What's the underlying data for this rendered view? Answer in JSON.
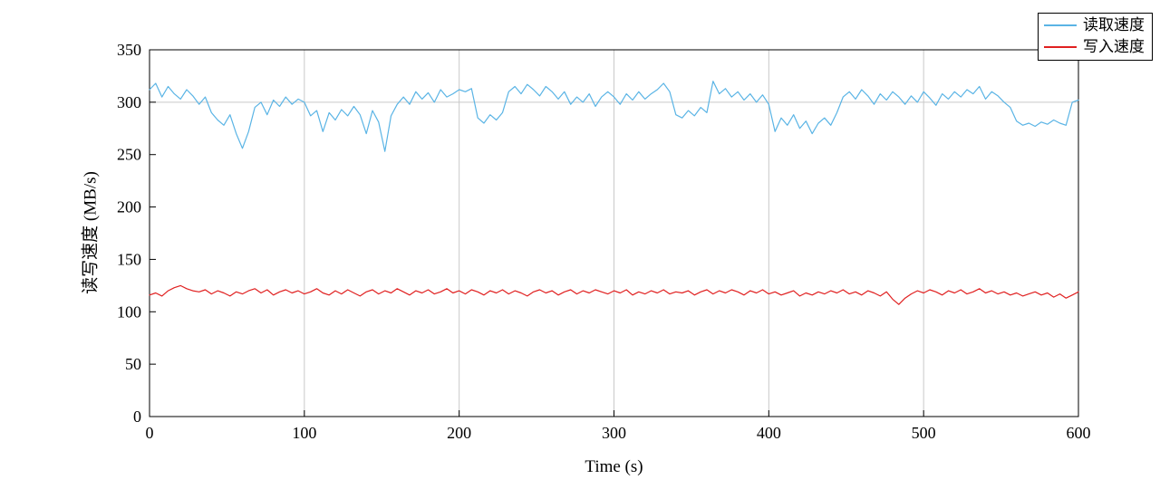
{
  "chart_data": {
    "type": "line",
    "title": "",
    "xlabel": "Time (s)",
    "ylabel": "读写速度 (MB/s)",
    "xlim": [
      0,
      600
    ],
    "ylim": [
      0,
      350
    ],
    "xticks": [
      0,
      100,
      200,
      300,
      400,
      500,
      600
    ],
    "yticks": [
      0,
      50,
      100,
      150,
      200,
      250,
      300,
      350
    ],
    "grid_x": [
      100,
      200,
      300,
      400,
      500
    ],
    "grid_y": [
      300
    ],
    "grid_color": "#c9c9c9",
    "frame_color": "#000000",
    "legend_position": "top-right",
    "x": [
      0,
      4,
      8,
      12,
      16,
      20,
      24,
      28,
      32,
      36,
      40,
      44,
      48,
      52,
      56,
      60,
      64,
      68,
      72,
      76,
      80,
      84,
      88,
      92,
      96,
      100,
      104,
      108,
      112,
      116,
      120,
      124,
      128,
      132,
      136,
      140,
      144,
      148,
      152,
      156,
      160,
      164,
      168,
      172,
      176,
      180,
      184,
      188,
      192,
      196,
      200,
      204,
      208,
      212,
      216,
      220,
      224,
      228,
      232,
      236,
      240,
      244,
      248,
      252,
      256,
      260,
      264,
      268,
      272,
      276,
      280,
      284,
      288,
      292,
      296,
      300,
      304,
      308,
      312,
      316,
      320,
      324,
      328,
      332,
      336,
      340,
      344,
      348,
      352,
      356,
      360,
      364,
      368,
      372,
      376,
      380,
      384,
      388,
      392,
      396,
      400,
      404,
      408,
      412,
      416,
      420,
      424,
      428,
      432,
      436,
      440,
      444,
      448,
      452,
      456,
      460,
      464,
      468,
      472,
      476,
      480,
      484,
      488,
      492,
      496,
      500,
      504,
      508,
      512,
      516,
      520,
      524,
      528,
      532,
      536,
      540,
      544,
      548,
      552,
      556,
      560,
      564,
      568,
      572,
      576,
      580,
      584,
      588,
      592,
      596,
      600
    ],
    "series": [
      {
        "name": "读取速度",
        "color": "#5ab4e5",
        "values": [
          312,
          318,
          305,
          315,
          308,
          303,
          312,
          306,
          298,
          305,
          290,
          283,
          278,
          288,
          270,
          256,
          272,
          295,
          300,
          288,
          302,
          296,
          305,
          298,
          303,
          300,
          287,
          292,
          272,
          290,
          283,
          293,
          287,
          296,
          288,
          270,
          292,
          281,
          253,
          287,
          298,
          305,
          298,
          310,
          303,
          309,
          300,
          312,
          305,
          308,
          312,
          310,
          313,
          285,
          280,
          288,
          283,
          290,
          310,
          315,
          308,
          317,
          312,
          306,
          315,
          310,
          303,
          310,
          298,
          305,
          300,
          308,
          296,
          305,
          310,
          305,
          298,
          308,
          302,
          310,
          303,
          308,
          312,
          318,
          310,
          288,
          285,
          292,
          287,
          295,
          290,
          320,
          308,
          313,
          305,
          310,
          302,
          308,
          300,
          307,
          298,
          272,
          285,
          278,
          288,
          275,
          282,
          270,
          280,
          285,
          278,
          290,
          305,
          310,
          303,
          312,
          306,
          298,
          308,
          302,
          310,
          305,
          298,
          306,
          300,
          310,
          304,
          297,
          308,
          303,
          310,
          305,
          312,
          308,
          315,
          303,
          310,
          306,
          300,
          295,
          282,
          278,
          280,
          277,
          281,
          279,
          283,
          280,
          278,
          300,
          302
        ]
      },
      {
        "name": "写入速度",
        "color": "#e02020",
        "values": [
          116,
          118,
          115,
          120,
          123,
          125,
          122,
          120,
          119,
          121,
          117,
          120,
          118,
          115,
          119,
          117,
          120,
          122,
          118,
          121,
          116,
          119,
          121,
          118,
          120,
          117,
          119,
          122,
          118,
          116,
          120,
          117,
          121,
          118,
          115,
          119,
          121,
          117,
          120,
          118,
          122,
          119,
          116,
          120,
          118,
          121,
          117,
          119,
          122,
          118,
          120,
          117,
          121,
          119,
          116,
          120,
          118,
          121,
          117,
          120,
          118,
          115,
          119,
          121,
          118,
          120,
          116,
          119,
          121,
          117,
          120,
          118,
          121,
          119,
          117,
          120,
          118,
          121,
          116,
          119,
          117,
          120,
          118,
          121,
          117,
          119,
          118,
          120,
          116,
          119,
          121,
          117,
          120,
          118,
          121,
          119,
          116,
          120,
          118,
          121,
          117,
          119,
          116,
          118,
          120,
          115,
          118,
          116,
          119,
          117,
          120,
          118,
          121,
          117,
          119,
          116,
          120,
          118,
          115,
          119,
          112,
          107,
          113,
          117,
          120,
          118,
          121,
          119,
          116,
          120,
          118,
          121,
          117,
          119,
          122,
          118,
          120,
          117,
          119,
          116,
          118,
          115,
          117,
          119,
          116,
          118,
          114,
          117,
          113,
          116,
          119
        ]
      }
    ]
  }
}
